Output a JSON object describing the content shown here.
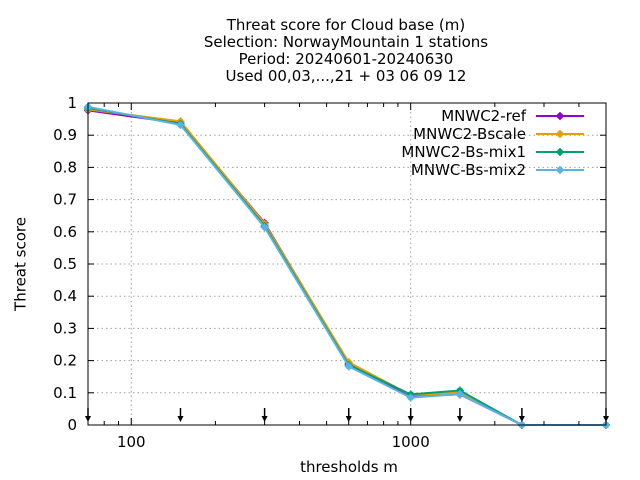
{
  "chart_data": {
    "type": "line",
    "title_lines": [
      "Threat score  for Cloud base (m)",
      "Selection: NorwayMountain      1 stations",
      "Period: 20240601-20240630",
      "Used 00,03,...,21 + 03 06 09 12"
    ],
    "xlabel": "thresholds m",
    "ylabel": "Threat score",
    "xscale": "log",
    "xlim": [
      70,
      5000
    ],
    "ylim": [
      0,
      1
    ],
    "xticks": [
      100,
      1000
    ],
    "xtick_labels": [
      "100",
      "1000"
    ],
    "yticks": [
      0,
      0.1,
      0.2,
      0.3,
      0.4,
      0.5,
      0.6,
      0.7,
      0.8,
      0.9,
      1
    ],
    "ytick_labels": [
      "0",
      "0.1",
      "0.2",
      "0.3",
      "0.4",
      "0.5",
      "0.6",
      "0.7",
      "0.8",
      "0.9",
      "1"
    ],
    "grid": true,
    "legend_position": "top-right",
    "x": [
      70,
      150,
      300,
      600,
      1000,
      1500,
      2500,
      5000
    ],
    "series": [
      {
        "name": "MNWC2-ref",
        "color": "#9400d3",
        "values": [
          0.977,
          0.937,
          0.628,
          0.19,
          0.09,
          0.095,
          0.0,
          0.0
        ]
      },
      {
        "name": "MNWC2-Bscale",
        "color": "#e69f00",
        "values": [
          0.98,
          0.943,
          0.625,
          0.195,
          0.093,
          0.1,
          0.0,
          0.0
        ]
      },
      {
        "name": "MNWC2-Bs-mix1",
        "color": "#009e73",
        "values": [
          0.985,
          0.935,
          0.618,
          0.186,
          0.095,
          0.107,
          0.0,
          0.0
        ]
      },
      {
        "name": "MNWC-Bs-mix2",
        "color": "#56b4e9",
        "values": [
          0.988,
          0.932,
          0.614,
          0.182,
          0.085,
          0.096,
          0.0,
          0.0
        ]
      }
    ],
    "threshold_markers": [
      70,
      150,
      300,
      600,
      1000,
      1500,
      2500,
      5000
    ]
  }
}
